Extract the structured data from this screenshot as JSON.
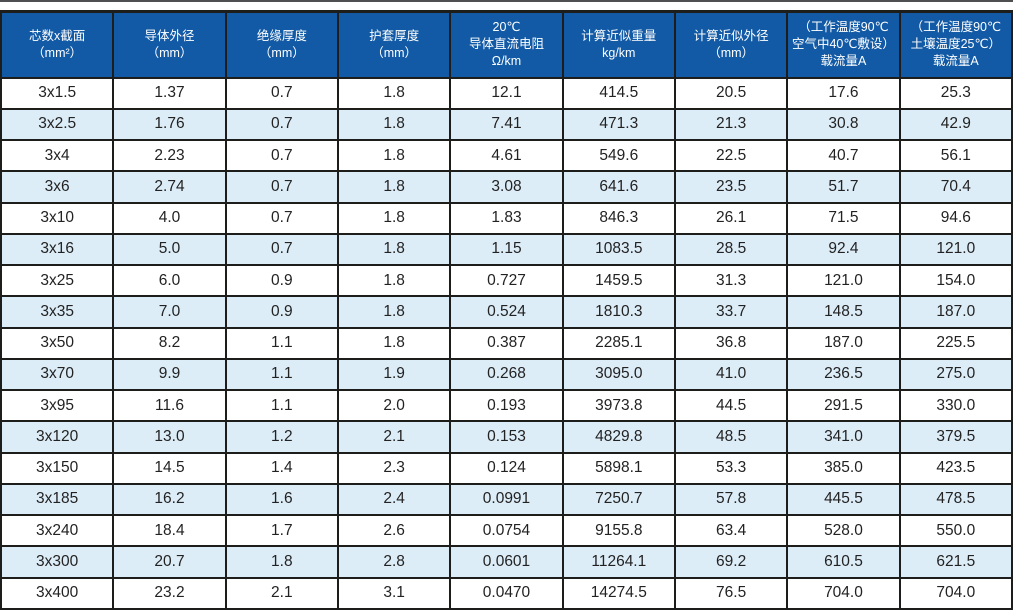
{
  "colors": {
    "header_bg": "#125aa6",
    "header_text": "#ffffff",
    "row_alt_bg": "#ddedf8",
    "row_bg": "#ffffff",
    "border": "#1d1d1b",
    "cell_text": "#222222"
  },
  "table": {
    "columns": [
      {
        "id": "cores-x-section",
        "lines": [
          "芯数x截面",
          "（mm²）"
        ]
      },
      {
        "id": "conductor-od",
        "lines": [
          "导体外径",
          "（mm）"
        ]
      },
      {
        "id": "insulation-thick",
        "lines": [
          "绝缘厚度",
          "（mm）"
        ]
      },
      {
        "id": "sheath-thick",
        "lines": [
          "护套厚度",
          "（mm）"
        ]
      },
      {
        "id": "dc-resistance",
        "lines": [
          "20℃",
          "导体直流电阻",
          "Ω/km"
        ]
      },
      {
        "id": "approx-weight",
        "lines": [
          "计算近似重量",
          "kg/km"
        ]
      },
      {
        "id": "approx-od",
        "lines": [
          "计算近似外径",
          "（mm）"
        ]
      },
      {
        "id": "ampacity-air",
        "lines": [
          "（工作温度90℃",
          "空气中40℃敷设）",
          "载流量A"
        ]
      },
      {
        "id": "ampacity-soil",
        "lines": [
          "（工作温度90℃",
          "土壤温度25℃）",
          "载流量A"
        ]
      }
    ],
    "rows": [
      [
        "3x1.5",
        "1.37",
        "0.7",
        "1.8",
        "12.1",
        "414.5",
        "20.5",
        "17.6",
        "25.3"
      ],
      [
        "3x2.5",
        "1.76",
        "0.7",
        "1.8",
        "7.41",
        "471.3",
        "21.3",
        "30.8",
        "42.9"
      ],
      [
        "3x4",
        "2.23",
        "0.7",
        "1.8",
        "4.61",
        "549.6",
        "22.5",
        "40.7",
        "56.1"
      ],
      [
        "3x6",
        "2.74",
        "0.7",
        "1.8",
        "3.08",
        "641.6",
        "23.5",
        "51.7",
        "70.4"
      ],
      [
        "3x10",
        "4.0",
        "0.7",
        "1.8",
        "1.83",
        "846.3",
        "26.1",
        "71.5",
        "94.6"
      ],
      [
        "3x16",
        "5.0",
        "0.7",
        "1.8",
        "1.15",
        "1083.5",
        "28.5",
        "92.4",
        "121.0"
      ],
      [
        "3x25",
        "6.0",
        "0.9",
        "1.8",
        "0.727",
        "1459.5",
        "31.3",
        "121.0",
        "154.0"
      ],
      [
        "3x35",
        "7.0",
        "0.9",
        "1.8",
        "0.524",
        "1810.3",
        "33.7",
        "148.5",
        "187.0"
      ],
      [
        "3x50",
        "8.2",
        "1.1",
        "1.8",
        "0.387",
        "2285.1",
        "36.8",
        "187.0",
        "225.5"
      ],
      [
        "3x70",
        "9.9",
        "1.1",
        "1.9",
        "0.268",
        "3095.0",
        "41.0",
        "236.5",
        "275.0"
      ],
      [
        "3x95",
        "11.6",
        "1.1",
        "2.0",
        "0.193",
        "3973.8",
        "44.5",
        "291.5",
        "330.0"
      ],
      [
        "3x120",
        "13.0",
        "1.2",
        "2.1",
        "0.153",
        "4829.8",
        "48.5",
        "341.0",
        "379.5"
      ],
      [
        "3x150",
        "14.5",
        "1.4",
        "2.3",
        "0.124",
        "5898.1",
        "53.3",
        "385.0",
        "423.5"
      ],
      [
        "3x185",
        "16.2",
        "1.6",
        "2.4",
        "0.0991",
        "7250.7",
        "57.8",
        "445.5",
        "478.5"
      ],
      [
        "3x240",
        "18.4",
        "1.7",
        "2.6",
        "0.0754",
        "9155.8",
        "63.4",
        "528.0",
        "550.0"
      ],
      [
        "3x300",
        "20.7",
        "1.8",
        "2.8",
        "0.0601",
        "11264.1",
        "69.2",
        "610.5",
        "621.5"
      ],
      [
        "3x400",
        "23.2",
        "2.1",
        "3.1",
        "0.0470",
        "14274.5",
        "76.5",
        "704.0",
        "704.0"
      ]
    ]
  },
  "chart_data": {
    "type": "table",
    "title": "",
    "columns": [
      "芯数x截面（mm²）",
      "导体外径（mm）",
      "绝缘厚度（mm）",
      "护套厚度（mm）",
      "20℃ 导体直流电阻 Ω/km",
      "计算近似重量 kg/km",
      "计算近似外径（mm）",
      "（工作温度90℃ 空气中40℃敷设）载流量A",
      "（工作温度90℃ 土壤温度25℃）载流量A"
    ],
    "rows": [
      [
        "3x1.5",
        1.37,
        0.7,
        1.8,
        12.1,
        414.5,
        20.5,
        17.6,
        25.3
      ],
      [
        "3x2.5",
        1.76,
        0.7,
        1.8,
        7.41,
        471.3,
        21.3,
        30.8,
        42.9
      ],
      [
        "3x4",
        2.23,
        0.7,
        1.8,
        4.61,
        549.6,
        22.5,
        40.7,
        56.1
      ],
      [
        "3x6",
        2.74,
        0.7,
        1.8,
        3.08,
        641.6,
        23.5,
        51.7,
        70.4
      ],
      [
        "3x10",
        4.0,
        0.7,
        1.8,
        1.83,
        846.3,
        26.1,
        71.5,
        94.6
      ],
      [
        "3x16",
        5.0,
        0.7,
        1.8,
        1.15,
        1083.5,
        28.5,
        92.4,
        121.0
      ],
      [
        "3x25",
        6.0,
        0.9,
        1.8,
        0.727,
        1459.5,
        31.3,
        121.0,
        154.0
      ],
      [
        "3x35",
        7.0,
        0.9,
        1.8,
        0.524,
        1810.3,
        33.7,
        148.5,
        187.0
      ],
      [
        "3x50",
        8.2,
        1.1,
        1.8,
        0.387,
        2285.1,
        36.8,
        187.0,
        225.5
      ],
      [
        "3x70",
        9.9,
        1.1,
        1.9,
        0.268,
        3095.0,
        41.0,
        236.5,
        275.0
      ],
      [
        "3x95",
        11.6,
        1.1,
        2.0,
        0.193,
        3973.8,
        44.5,
        291.5,
        330.0
      ],
      [
        "3x120",
        13.0,
        1.2,
        2.1,
        0.153,
        4829.8,
        48.5,
        341.0,
        379.5
      ],
      [
        "3x150",
        14.5,
        1.4,
        2.3,
        0.124,
        5898.1,
        53.3,
        385.0,
        423.5
      ],
      [
        "3x185",
        16.2,
        1.6,
        2.4,
        0.0991,
        7250.7,
        57.8,
        445.5,
        478.5
      ],
      [
        "3x240",
        18.4,
        1.7,
        2.6,
        0.0754,
        9155.8,
        63.4,
        528.0,
        550.0
      ],
      [
        "3x300",
        20.7,
        1.8,
        2.8,
        0.0601,
        11264.1,
        69.2,
        610.5,
        621.5
      ],
      [
        "3x400",
        23.2,
        2.1,
        3.1,
        0.047,
        14274.5,
        76.5,
        704.0,
        704.0
      ]
    ]
  }
}
